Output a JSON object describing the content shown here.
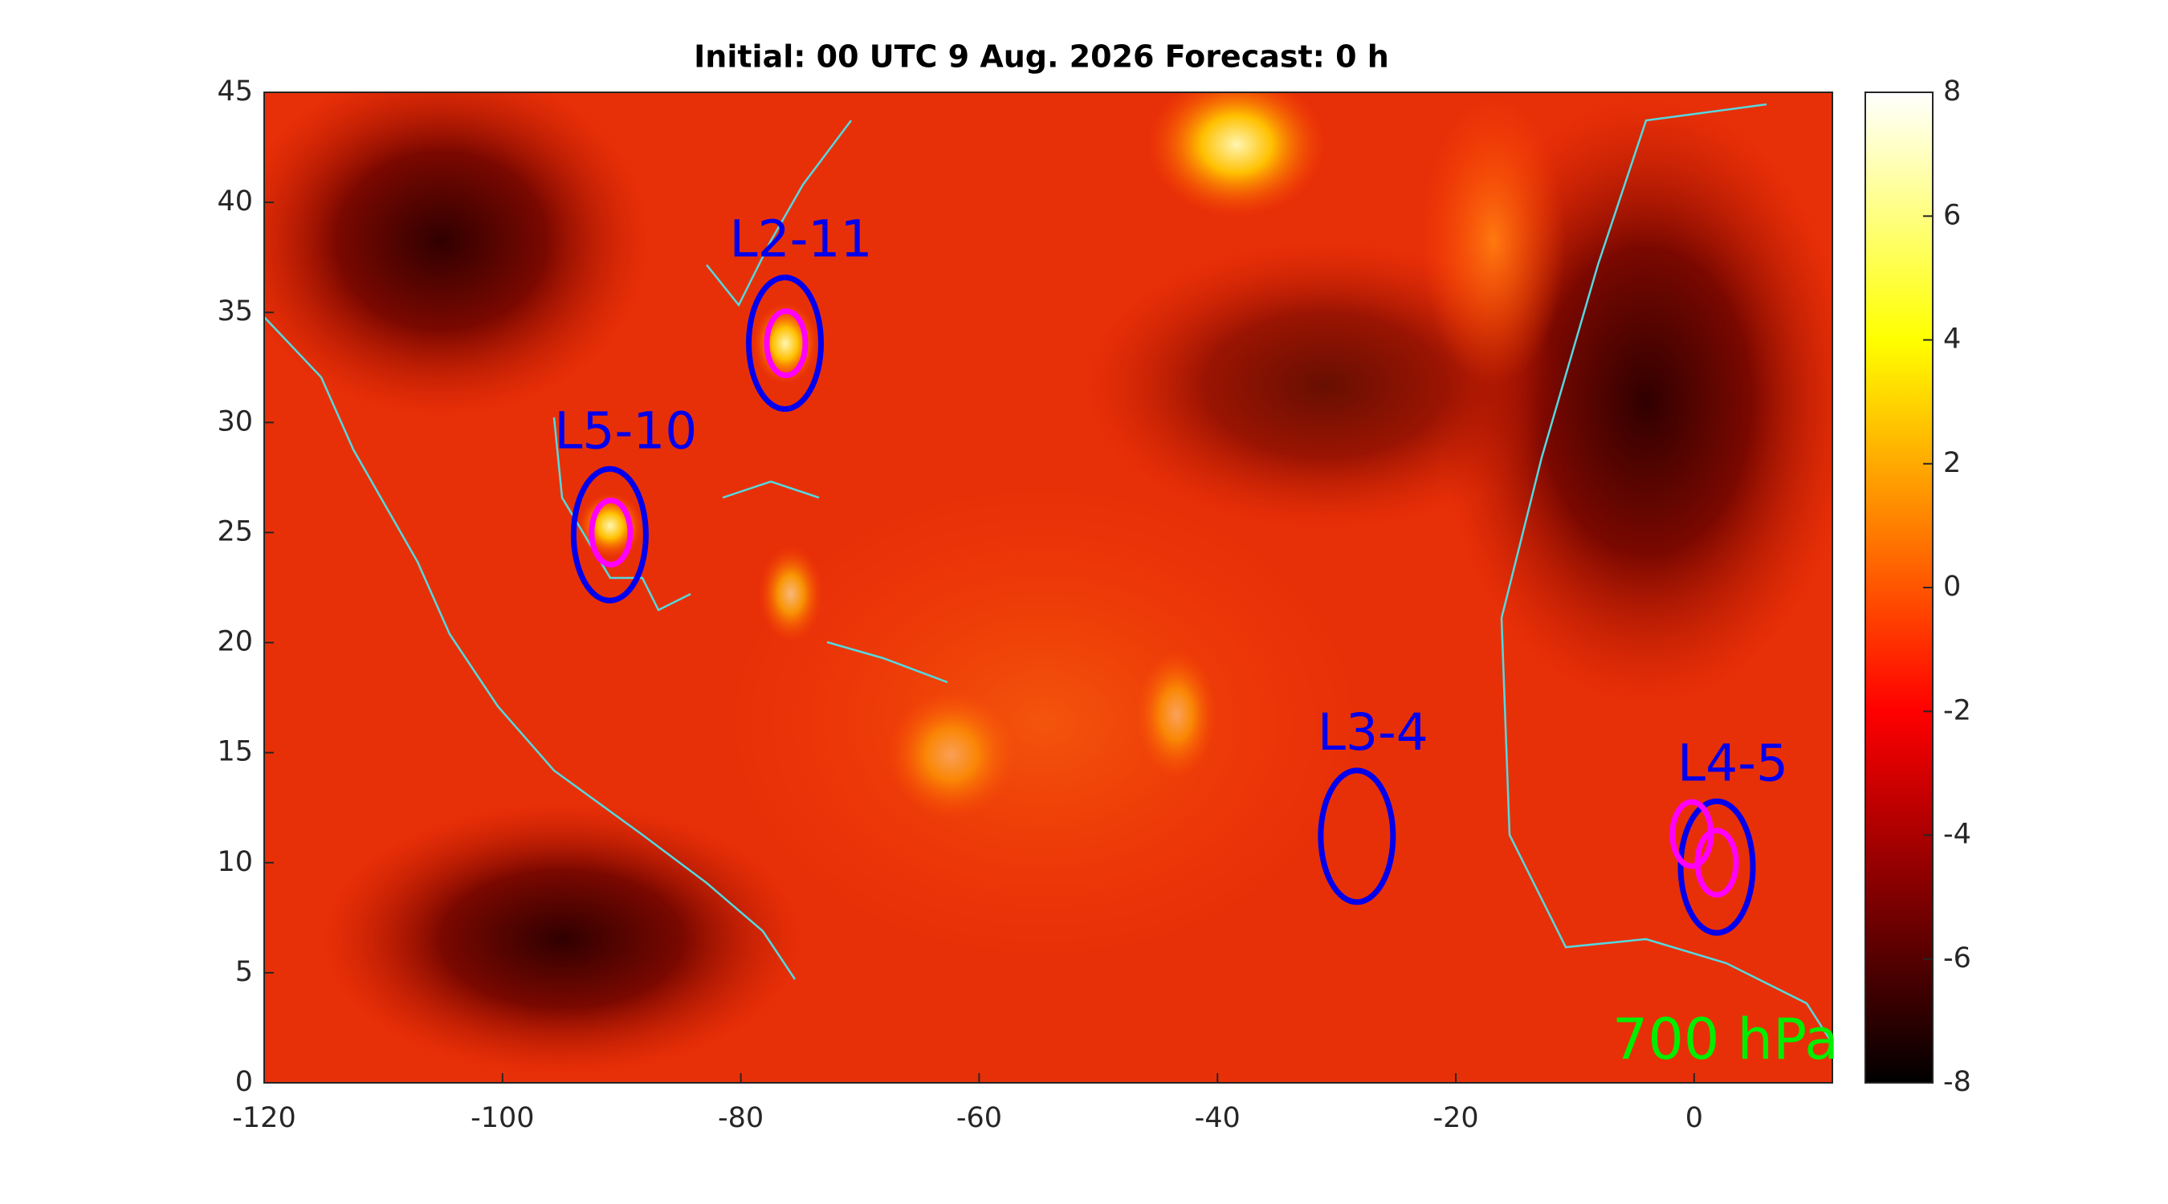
{
  "chart_data": {
    "type": "map",
    "title": "Initial: 00 UTC 9 Aug. 2026 Forecast: 0 h",
    "level_label": "700 hPa",
    "xlim": [
      -120,
      11.6
    ],
    "ylim": [
      0,
      45
    ],
    "xticks": [
      -120,
      -100,
      -80,
      -60,
      -40,
      -20,
      0
    ],
    "yticks": [
      0,
      5,
      10,
      15,
      20,
      25,
      30,
      35,
      40,
      45
    ],
    "colorbar": {
      "lim": [
        -8,
        8
      ],
      "ticks": [
        -8,
        -6,
        -4,
        -2,
        0,
        2,
        4,
        6,
        8
      ]
    },
    "systems": [
      {
        "name": "L2-11",
        "lon": -76.3,
        "lat": 33.6,
        "inner": [
          [
            -76.2,
            33.6
          ]
        ]
      },
      {
        "name": "L5-10",
        "lon": -91.0,
        "lat": 24.9,
        "inner": [
          [
            -90.9,
            25.0
          ]
        ]
      },
      {
        "name": "L3-4",
        "lon": -28.3,
        "lat": 11.2,
        "inner": []
      },
      {
        "name": "L4-5",
        "lon": 1.9,
        "lat": 9.8,
        "inner": [
          [
            1.9,
            10.0
          ],
          [
            -0.2,
            11.3
          ]
        ]
      }
    ]
  }
}
